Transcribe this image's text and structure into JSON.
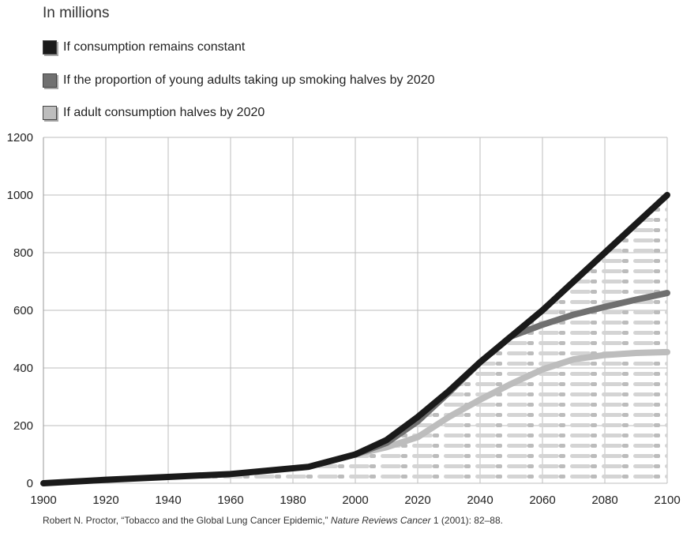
{
  "chart_data": {
    "type": "line",
    "title": "",
    "units_label": "In millions",
    "xlabel": "",
    "ylabel": "",
    "xlim": [
      1900,
      2100
    ],
    "ylim": [
      0,
      1200
    ],
    "x_ticks": [
      1900,
      1920,
      1940,
      1960,
      1980,
      2000,
      2020,
      2040,
      2060,
      2080,
      2100
    ],
    "y_ticks": [
      0,
      200,
      400,
      600,
      800,
      1000,
      1200
    ],
    "grid": true,
    "legend_position": "top-left",
    "series": [
      {
        "name": "If consumption remains constant",
        "color": "#1a1a1a",
        "x": [
          1900,
          1920,
          1940,
          1960,
          1985,
          2000,
          2010,
          2020,
          2030,
          2040,
          2050,
          2060,
          2070,
          2080,
          2090,
          2100
        ],
        "y": [
          0,
          12,
          22,
          32,
          57,
          100,
          150,
          230,
          320,
          420,
          510,
          600,
          700,
          800,
          900,
          1000
        ]
      },
      {
        "name": "If the proportion of young adults taking up smoking halves by 2020",
        "color": "#707070",
        "x": [
          2000,
          2010,
          2020,
          2030,
          2040,
          2050,
          2060,
          2070,
          2080,
          2090,
          2100
        ],
        "y": [
          100,
          140,
          215,
          315,
          420,
          510,
          550,
          585,
          612,
          637,
          660
        ]
      },
      {
        "name": "If adult consumption halves by 2020",
        "color": "#bdbdbd",
        "x": [
          2000,
          2010,
          2020,
          2030,
          2040,
          2050,
          2060,
          2070,
          2080,
          2090,
          2100
        ],
        "y": [
          100,
          125,
          160,
          230,
          290,
          345,
          395,
          430,
          445,
          452,
          455
        ]
      }
    ]
  },
  "source": {
    "author": "Robert N. Proctor, “Tobacco and the Global Lung Cancer Epidemic,” ",
    "journal": "Nature Reviews Cancer",
    "rest": " 1 (2001): 82–88."
  }
}
